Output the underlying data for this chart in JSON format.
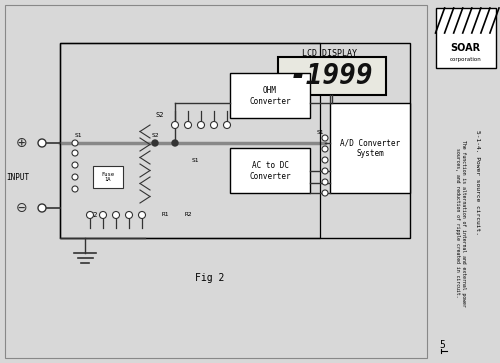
{
  "bg_color": "#d8d8d8",
  "page_bg": "#f5f5f2",
  "fig_label": "Fig 2",
  "lcd_display_label": "LCD DISPLAY",
  "lcd_reading": "-1999",
  "ohm_converter_label": "OHM\nConverter",
  "ac_dc_converter_label": "AC to DC\nConverter",
  "ad_converter_label": "A/D Converter\nSystem",
  "input_label": "INPUT",
  "fuse_label": "Fuse\n1A",
  "s1_top_label": "S1",
  "s2_top_label": "S2",
  "s2_bot_label": "S2",
  "s1_right_label": "S1",
  "s1_mid_label": "S1",
  "r1_label": "R1",
  "r2_label": "R2",
  "title_text": "5-1-4. Power source circuit.",
  "subtitle_text": "The function is alternation of internal and external power\nsources, and reduction of ripple created in circuit.",
  "page_num": "5",
  "soar_text": "SOAR\ncorporation",
  "line_color": "#333333",
  "box_color": "#333333",
  "lcd_border_color": "#333333",
  "lcd_bg": "#e8e8e0",
  "lcd_digit_color": "#111111"
}
